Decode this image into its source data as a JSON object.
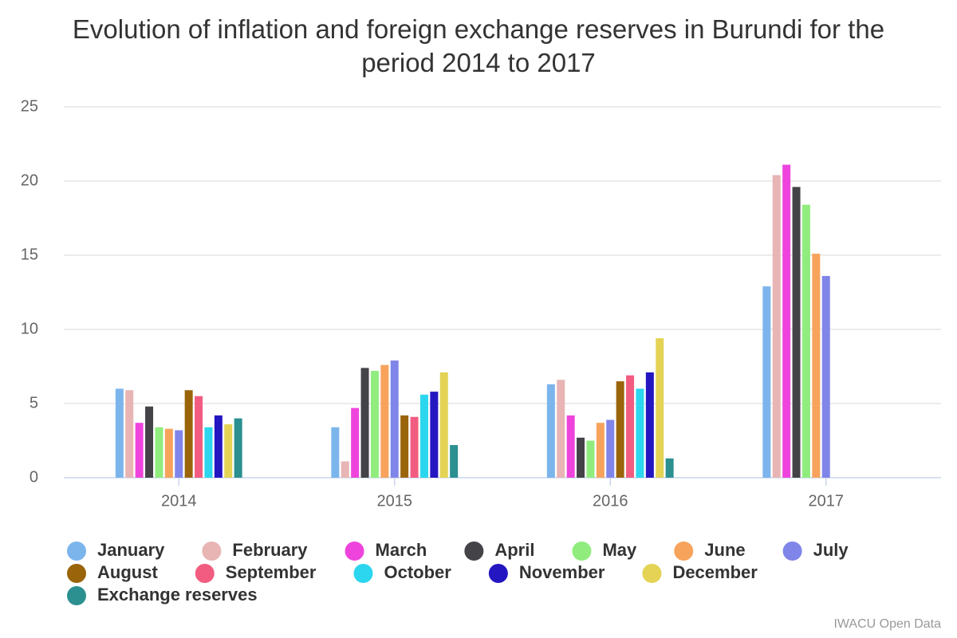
{
  "chart_data": {
    "type": "bar",
    "title": "Evolution of inflation and foreign exchange reserves in Burundi for the period 2014 to 2017",
    "credits": "IWACU Open Data",
    "categories": [
      "2014",
      "2015",
      "2016",
      "2017"
    ],
    "ylim": [
      0,
      25
    ],
    "yticks": [
      0,
      5,
      10,
      15,
      20,
      25
    ],
    "grid": true,
    "series": [
      {
        "name": "January",
        "color": "#7cb5ec",
        "values": [
          6.0,
          3.4,
          6.3,
          12.9
        ]
      },
      {
        "name": "February",
        "color": "#e8b4b4",
        "values": [
          5.9,
          1.1,
          6.6,
          20.4
        ]
      },
      {
        "name": "March",
        "color": "#ee44dd",
        "values": [
          3.7,
          4.7,
          4.2,
          21.1
        ]
      },
      {
        "name": "April",
        "color": "#434348",
        "values": [
          4.8,
          7.4,
          2.7,
          19.6
        ]
      },
      {
        "name": "May",
        "color": "#90ed7d",
        "values": [
          3.4,
          7.2,
          2.5,
          18.4
        ]
      },
      {
        "name": "June",
        "color": "#f7a35c",
        "values": [
          3.3,
          7.6,
          3.7,
          15.1
        ]
      },
      {
        "name": "July",
        "color": "#8085e9",
        "values": [
          3.2,
          7.9,
          3.9,
          13.6
        ]
      },
      {
        "name": "August",
        "color": "#9a650a",
        "values": [
          5.9,
          4.2,
          6.5,
          null
        ]
      },
      {
        "name": "September",
        "color": "#f15c80",
        "values": [
          5.5,
          4.1,
          6.9,
          null
        ]
      },
      {
        "name": "October",
        "color": "#2bd6ee",
        "values": [
          3.4,
          5.6,
          6.0,
          null
        ]
      },
      {
        "name": "November",
        "color": "#2416c0",
        "values": [
          4.2,
          5.8,
          7.1,
          null
        ]
      },
      {
        "name": "December",
        "color": "#e4d354",
        "values": [
          3.6,
          7.1,
          9.4,
          null
        ]
      },
      {
        "name": "Exchange reserves",
        "color": "#2b908f",
        "values": [
          4.0,
          2.2,
          1.3,
          null
        ]
      }
    ]
  }
}
